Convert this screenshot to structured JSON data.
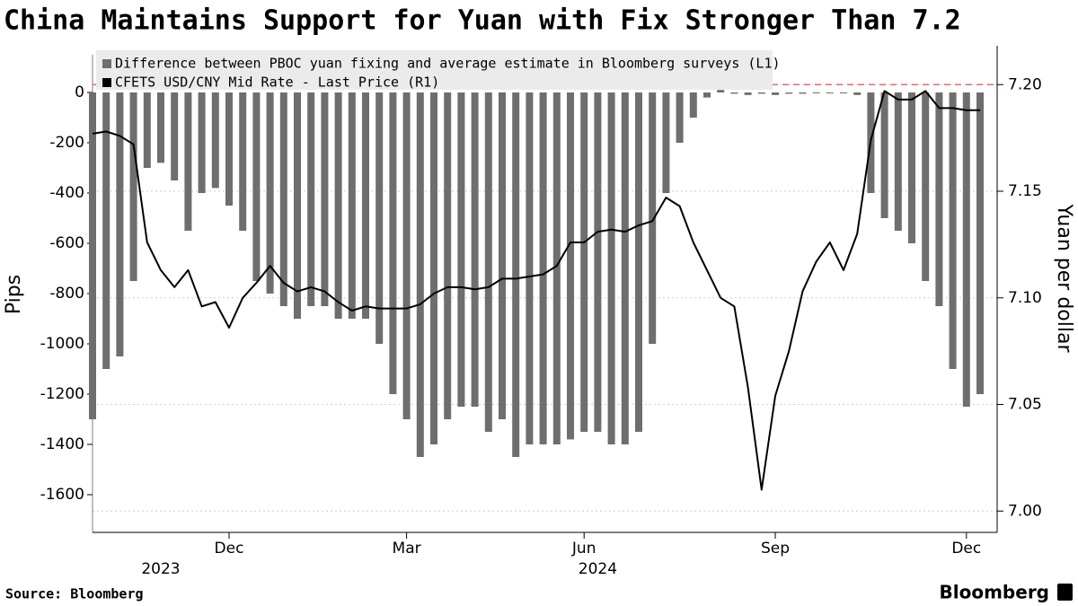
{
  "chart_data": {
    "type": "bar",
    "title": "China Maintains Support for Yuan with Fix Stronger Than 7.2",
    "ylabel": "Pips",
    "y2label": "Yuan per dollar",
    "source": "Source: Bloomberg",
    "brand": "Bloomberg",
    "categories": [
      null,
      null,
      null,
      null,
      null,
      null,
      null,
      null,
      null,
      null,
      null,
      null,
      null,
      null,
      null,
      null,
      null,
      null,
      null,
      null,
      null,
      null,
      null,
      null,
      null,
      null,
      null,
      null,
      null,
      null,
      null,
      null,
      null,
      null,
      null,
      null,
      null,
      null,
      null,
      null,
      null,
      null,
      null,
      null,
      null,
      null,
      null,
      null,
      null,
      null,
      null,
      null,
      null,
      null,
      null,
      null,
      null,
      null,
      null,
      null,
      null,
      null,
      null,
      null,
      null,
      null
    ],
    "xticks": [
      {
        "value": 10,
        "label": "Dec"
      },
      {
        "value": 23,
        "label": "Mar"
      },
      {
        "value": 36,
        "label": "Jun"
      },
      {
        "value": 50,
        "label": "Sep"
      },
      {
        "value": 64,
        "label": "Dec"
      }
    ],
    "year_labels": [
      {
        "value": 5,
        "label": "2023"
      },
      {
        "value": 37,
        "label": "2024"
      }
    ],
    "series": [
      {
        "name": "Difference between PBOC yuan fixing and average estimate in Bloomberg surveys (L1)",
        "type": "bar",
        "color": "#6e6e6e",
        "values": [
          -1300,
          -1100,
          -1050,
          -750,
          -300,
          -280,
          -350,
          -550,
          -400,
          -380,
          -450,
          -550,
          -750,
          -800,
          -850,
          -900,
          -850,
          -850,
          -900,
          -900,
          -900,
          -1000,
          -1200,
          -1300,
          -1450,
          -1400,
          -1300,
          -1250,
          -1250,
          -1350,
          -1300,
          -1450,
          -1400,
          -1400,
          -1400,
          -1380,
          -1350,
          -1350,
          -1400,
          -1400,
          -1350,
          -1000,
          -400,
          -200,
          -100,
          -20,
          10,
          -5,
          -10,
          -5,
          -10,
          -5,
          -5,
          -2,
          -2,
          -3,
          -10,
          -400,
          -500,
          -550,
          -600,
          -750,
          -850,
          -1100,
          -1250,
          -1200
        ]
      },
      {
        "name": "CFETS USD/CNY Mid Rate - Last Price (R1)",
        "type": "line",
        "color": "#000000",
        "axis": "y2",
        "values": [
          7.177,
          7.178,
          7.176,
          7.172,
          7.126,
          7.113,
          7.105,
          7.113,
          7.096,
          7.098,
          7.086,
          7.1,
          7.107,
          7.115,
          7.107,
          7.103,
          7.105,
          7.103,
          7.098,
          7.094,
          7.096,
          7.095,
          7.095,
          7.095,
          7.097,
          7.102,
          7.105,
          7.105,
          7.104,
          7.105,
          7.109,
          7.109,
          7.11,
          7.111,
          7.115,
          7.126,
          7.126,
          7.131,
          7.132,
          7.131,
          7.134,
          7.136,
          7.147,
          7.143,
          7.126,
          7.113,
          7.1,
          7.096,
          7.058,
          7.01,
          7.054,
          7.075,
          7.103,
          7.117,
          7.126,
          7.113,
          7.13,
          7.174,
          7.197,
          7.193,
          7.193,
          7.197,
          7.189,
          7.189,
          7.188,
          7.188
        ]
      }
    ],
    "ylim": [
      -1750,
      150
    ],
    "yticks": [
      0,
      -200,
      -400,
      -600,
      -800,
      -1000,
      -1200,
      -1400,
      -1600
    ],
    "y2lim": [
      6.99,
      7.214
    ],
    "y2ticks": [
      {
        "value": 7,
        "label": "7.00"
      },
      7.05,
      {
        "value": 7.1,
        "label": "7.10"
      },
      7.15,
      {
        "value": 7.2,
        "label": "7.20"
      }
    ],
    "grid": true,
    "hline": {
      "value": 7.2,
      "color": "#e86a6a"
    }
  }
}
